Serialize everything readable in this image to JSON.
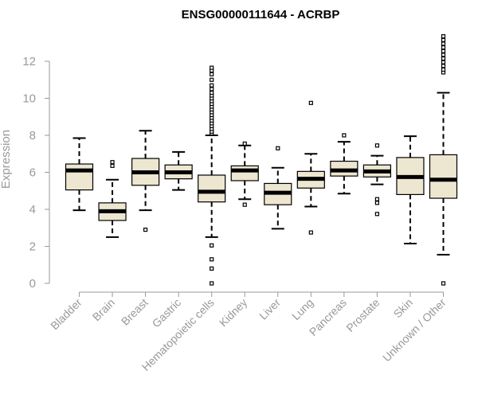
{
  "chart_data": {
    "type": "boxplot",
    "title": "ENSG00000111644 - ACRBP",
    "xlabel": "",
    "ylabel": "Expression",
    "ylim": [
      0,
      13.5
    ],
    "yticks": [
      0,
      2,
      4,
      6,
      8,
      10,
      12
    ],
    "grid": false,
    "legend": "none",
    "colors": {
      "box_fill": "#ede6d0",
      "axis": "#999999",
      "line": "#000000"
    },
    "categories": [
      "Bladder",
      "Brain",
      "Breast",
      "Gastric",
      "Hematopoietic cells",
      "Kidney",
      "Liver",
      "Lung",
      "Pancreas",
      "Prostate",
      "Skin",
      "Unknown / Other"
    ],
    "boxes": [
      {
        "category": "Bladder",
        "whisker_low": 3.95,
        "q1": 5.05,
        "median": 6.1,
        "q3": 6.45,
        "whisker_high": 7.85,
        "outliers": []
      },
      {
        "category": "Brain",
        "whisker_low": 2.5,
        "q1": 3.4,
        "median": 3.9,
        "q3": 4.35,
        "whisker_high": 5.6,
        "outliers": [
          6.35,
          6.55
        ]
      },
      {
        "category": "Breast",
        "whisker_low": 3.95,
        "q1": 5.3,
        "median": 6.0,
        "q3": 6.75,
        "whisker_high": 8.25,
        "outliers": [
          2.9
        ]
      },
      {
        "category": "Gastric",
        "whisker_low": 5.05,
        "q1": 5.65,
        "median": 6.0,
        "q3": 6.4,
        "whisker_high": 7.1,
        "outliers": []
      },
      {
        "category": "Hematopoietic cells",
        "whisker_low": 2.5,
        "q1": 4.4,
        "median": 4.95,
        "q3": 5.85,
        "whisker_high": 8.0,
        "outliers": [
          0.0,
          0.8,
          1.3,
          2.05,
          8.1,
          8.2,
          8.35,
          8.5,
          8.65,
          8.8,
          8.95,
          9.1,
          9.25,
          9.4,
          9.55,
          9.7,
          9.85,
          10.0,
          10.15,
          10.3,
          10.5,
          10.7,
          11.0,
          11.3,
          11.5,
          11.65
        ]
      },
      {
        "category": "Kidney",
        "whisker_low": 4.55,
        "q1": 5.55,
        "median": 6.1,
        "q3": 6.35,
        "whisker_high": 7.45,
        "outliers": [
          4.25,
          7.55
        ]
      },
      {
        "category": "Liver",
        "whisker_low": 2.95,
        "q1": 4.25,
        "median": 4.9,
        "q3": 5.4,
        "whisker_high": 6.25,
        "outliers": [
          7.3
        ]
      },
      {
        "category": "Lung",
        "whisker_low": 4.15,
        "q1": 5.15,
        "median": 5.65,
        "q3": 6.05,
        "whisker_high": 7.0,
        "outliers": [
          2.75,
          9.75
        ]
      },
      {
        "category": "Pancreas",
        "whisker_low": 4.85,
        "q1": 5.8,
        "median": 6.1,
        "q3": 6.6,
        "whisker_high": 7.65,
        "outliers": [
          8.0
        ]
      },
      {
        "category": "Prostate",
        "whisker_low": 5.35,
        "q1": 5.75,
        "median": 6.05,
        "q3": 6.4,
        "whisker_high": 6.9,
        "outliers": [
          3.75,
          4.35,
          4.55,
          7.45
        ]
      },
      {
        "category": "Skin",
        "whisker_low": 2.15,
        "q1": 4.8,
        "median": 5.75,
        "q3": 6.8,
        "whisker_high": 7.95,
        "outliers": []
      },
      {
        "category": "Unknown / Other",
        "whisker_low": 1.55,
        "q1": 4.6,
        "median": 5.6,
        "q3": 6.95,
        "whisker_high": 10.3,
        "outliers": [
          0.0,
          11.4,
          11.55,
          11.75,
          11.95,
          12.15,
          12.35,
          12.55,
          12.75,
          12.95,
          13.15,
          13.35
        ]
      }
    ]
  }
}
